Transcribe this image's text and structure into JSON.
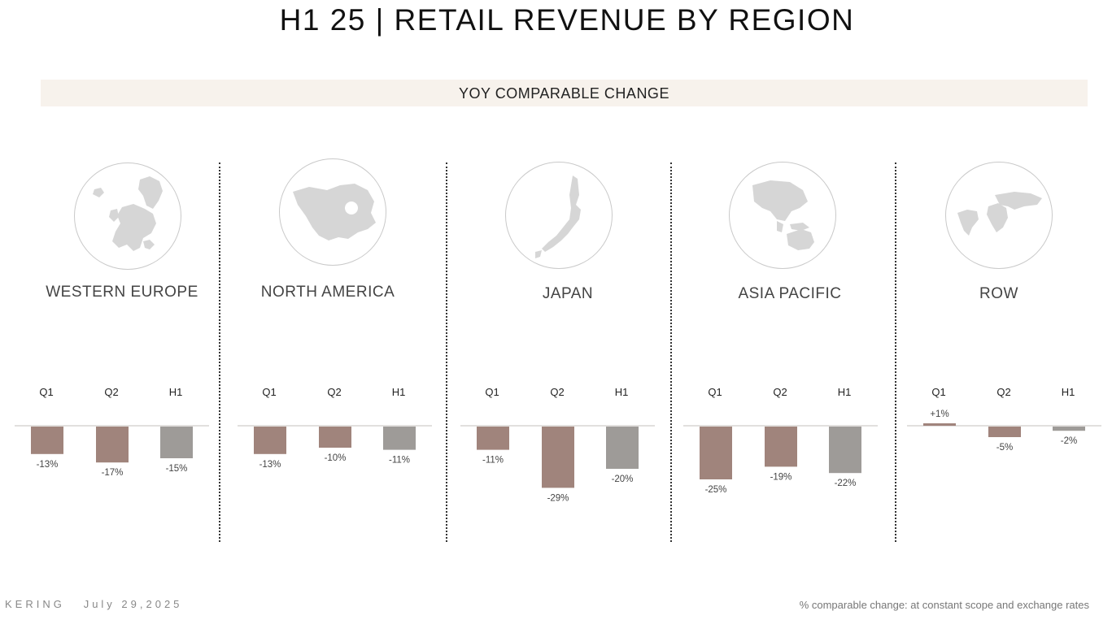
{
  "title": "H1 25 | RETAIL REVENUE BY REGION",
  "section_label": "YOY COMPARABLE CHANGE",
  "colors": {
    "quarter_bar": "#a0847c",
    "h1_bar": "#9e9b98",
    "baseline": "#d9d6d3",
    "band": "#f7f2ec",
    "globe_fill": "#d6d6d6"
  },
  "regions": [
    {
      "name": "WESTERN EUROPE",
      "icon": "europe-map-icon"
    },
    {
      "name": "NORTH AMERICA",
      "icon": "north-america-map-icon"
    },
    {
      "name": "JAPAN",
      "icon": "japan-map-icon"
    },
    {
      "name": "ASIA PACIFIC",
      "icon": "asia-pacific-map-icon"
    },
    {
      "name": "ROW",
      "icon": "world-map-icon"
    }
  ],
  "chart_data": [
    {
      "type": "bar",
      "title": "WESTERN EUROPE",
      "categories": [
        "Q1",
        "Q2",
        "H1"
      ],
      "values": [
        -13,
        -17,
        -15
      ],
      "labels": [
        "-13%",
        "-17%",
        "-15%"
      ]
    },
    {
      "type": "bar",
      "title": "NORTH AMERICA",
      "categories": [
        "Q1",
        "Q2",
        "H1"
      ],
      "values": [
        -13,
        -10,
        -11
      ],
      "labels": [
        "-13%",
        "-10%",
        "-11%"
      ]
    },
    {
      "type": "bar",
      "title": "JAPAN",
      "categories": [
        "Q1",
        "Q2",
        "H1"
      ],
      "values": [
        -11,
        -29,
        -20
      ],
      "labels": [
        "-11%",
        "-29%",
        "-20%"
      ]
    },
    {
      "type": "bar",
      "title": "ASIA PACIFIC",
      "categories": [
        "Q1",
        "Q2",
        "H1"
      ],
      "values": [
        -25,
        -19,
        -22
      ],
      "labels": [
        "-25%",
        "-19%",
        "-22%"
      ]
    },
    {
      "type": "bar",
      "title": "ROW",
      "categories": [
        "Q1",
        "Q2",
        "H1"
      ],
      "values": [
        1,
        -5,
        -2
      ],
      "labels": [
        "+1%",
        "-5%",
        "-2%"
      ]
    }
  ],
  "footer": {
    "brand": "KERING",
    "date": "July 29,2025",
    "note": "% comparable change: at constant scope and exchange rates"
  }
}
